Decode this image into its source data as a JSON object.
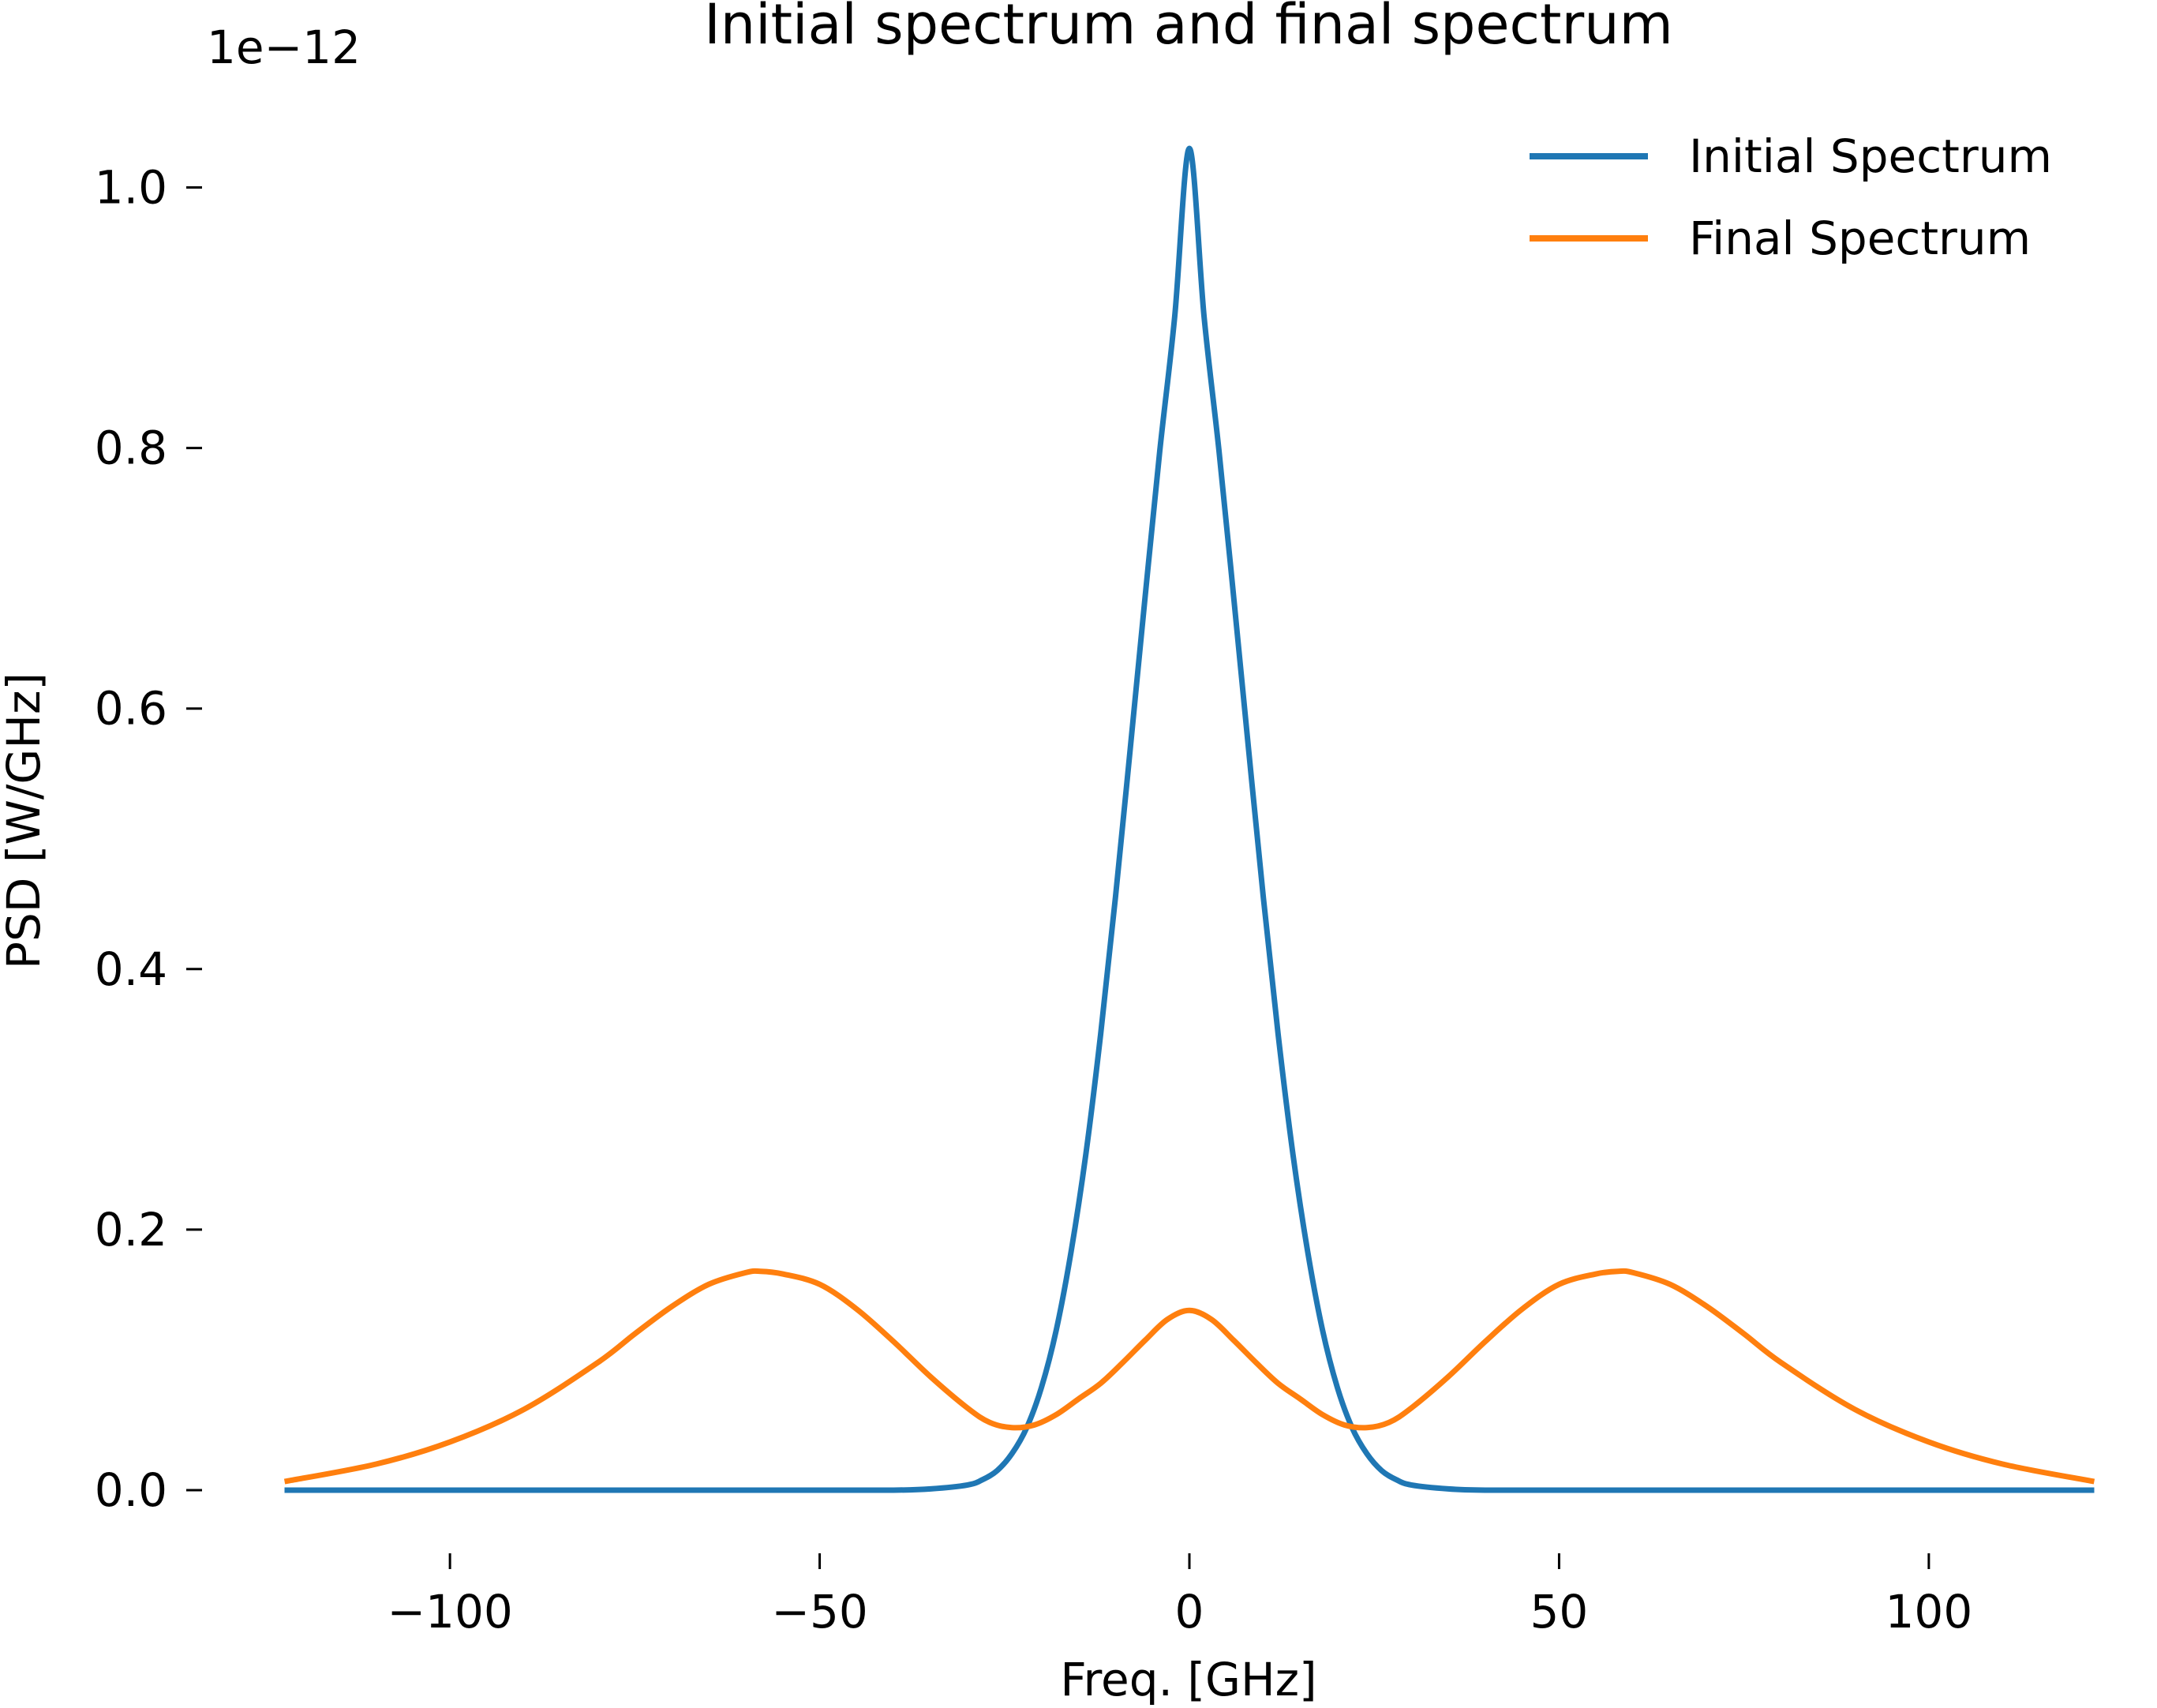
{
  "chart_data": {
    "type": "line",
    "title": "Initial spectrum and final spectrum",
    "xlabel": "Freq. [GHz]",
    "ylabel": "PSD [W/GHz]",
    "y_offset_label": "1e−12",
    "y_scale_factor": 1e-12,
    "xlim": [
      -122,
      122
    ],
    "ylim": [
      0,
      1.03
    ],
    "x_ticks": [
      -100,
      -50,
      0,
      50,
      100
    ],
    "x_tick_labels": [
      "−100",
      "−50",
      "0",
      "50",
      "100"
    ],
    "y_ticks": [
      0.0,
      0.2,
      0.4,
      0.6,
      0.8,
      1.0
    ],
    "y_tick_labels": [
      "0.0",
      "0.2",
      "0.4",
      "0.6",
      "0.8",
      "1.0"
    ],
    "grid": false,
    "legend_position": "top-right",
    "series": [
      {
        "name": "Initial Spectrum",
        "color": "#1f77b4",
        "x": [
          -122,
          -100,
          -80,
          -60,
          -50,
          -40,
          -35,
          -30,
          -28,
          -26,
          -24,
          -22,
          -20,
          -18,
          -16,
          -14,
          -12,
          -10,
          -8,
          -6,
          -4,
          -2,
          0,
          2,
          4,
          6,
          8,
          10,
          12,
          14,
          16,
          18,
          20,
          22,
          24,
          26,
          28,
          30,
          35,
          40,
          50,
          60,
          80,
          100,
          122
        ],
        "y": [
          0.0,
          0.0,
          0.0,
          0.0,
          0.0,
          0.0,
          0.001,
          0.004,
          0.008,
          0.015,
          0.028,
          0.048,
          0.079,
          0.123,
          0.183,
          0.258,
          0.35,
          0.455,
          0.569,
          0.685,
          0.798,
          0.9,
          1.03,
          0.9,
          0.798,
          0.685,
          0.569,
          0.455,
          0.35,
          0.258,
          0.183,
          0.123,
          0.079,
          0.048,
          0.028,
          0.015,
          0.008,
          0.004,
          0.001,
          0.0,
          0.0,
          0.0,
          0.0,
          0.0,
          0.0
        ]
      },
      {
        "name": "Final Spectrum",
        "color": "#ff7f0e",
        "x": [
          -122,
          -110,
          -100,
          -90,
          -80,
          -75,
          -70,
          -65,
          -60,
          -58,
          -55,
          -50,
          -45,
          -40,
          -35,
          -30,
          -27,
          -24,
          -21,
          -18,
          -15,
          -12,
          -9,
          -6,
          -3,
          0,
          3,
          6,
          9,
          12,
          15,
          18,
          21,
          24,
          27,
          30,
          35,
          40,
          45,
          50,
          55,
          58,
          60,
          65,
          70,
          75,
          80,
          90,
          100,
          110,
          122
        ],
        "y": [
          0.007,
          0.02,
          0.037,
          0.062,
          0.098,
          0.12,
          0.141,
          0.158,
          0.167,
          0.168,
          0.166,
          0.158,
          0.139,
          0.114,
          0.087,
          0.063,
          0.052,
          0.048,
          0.05,
          0.058,
          0.07,
          0.082,
          0.098,
          0.115,
          0.131,
          0.138,
          0.131,
          0.115,
          0.098,
          0.082,
          0.07,
          0.058,
          0.05,
          0.048,
          0.052,
          0.063,
          0.087,
          0.114,
          0.139,
          0.158,
          0.166,
          0.168,
          0.167,
          0.158,
          0.141,
          0.12,
          0.098,
          0.062,
          0.037,
          0.02,
          0.007
        ]
      }
    ]
  }
}
